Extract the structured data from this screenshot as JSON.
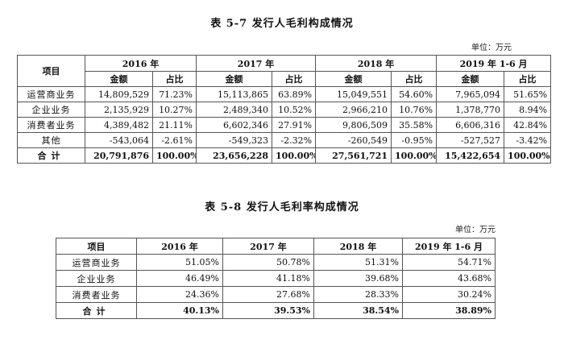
{
  "table1": {
    "title": "表 5-7  发行人毛利构成情况",
    "unit": "单位：万元",
    "item_header": "项目",
    "years": [
      "2016 年",
      "2017 年",
      "2018 年",
      "2019 年 1-6 月"
    ],
    "sub_headers": {
      "amount": "金额",
      "ratio": "占比"
    },
    "rows": [
      {
        "label": "运营商业务",
        "cells": [
          "14,809,529",
          "71.23%",
          "15,113,865",
          "63.89%",
          "15,049,551",
          "54.60%",
          "7,965,094",
          "51.65%"
        ]
      },
      {
        "label": "企业业务",
        "cells": [
          "2,135,929",
          "10.27%",
          "2,489,340",
          "10.52%",
          "2,966,210",
          "10.76%",
          "1,378,770",
          "8.94%"
        ]
      },
      {
        "label": "消费者业务",
        "cells": [
          "4,389,482",
          "21.11%",
          "6,602,346",
          "27.91%",
          "9,806,509",
          "35.58%",
          "6,606,316",
          "42.84%"
        ]
      },
      {
        "label": "其他",
        "cells": [
          "-543,064",
          "-2.61%",
          "-549,323",
          "-2.32%",
          "-260,549",
          "-0.95%",
          "-527,527",
          "-3.42%"
        ]
      }
    ],
    "total": {
      "label": "合计",
      "cells": [
        "20,791,876",
        "100.00%",
        "23,656,228",
        "100.00%",
        "27,561,721",
        "100.00%",
        "15,422,654",
        "100.00%"
      ]
    }
  },
  "table2": {
    "title": "表 5-8  发行人毛利率构成情况",
    "unit": "单位：万元",
    "item_header": "项目",
    "years": [
      "2016 年",
      "2017 年",
      "2018 年",
      "2019 年 1-6 月"
    ],
    "rows": [
      {
        "label": "运营商业务",
        "cells": [
          "51.05%",
          "50.78%",
          "51.31%",
          "54.71%"
        ]
      },
      {
        "label": "企业业务",
        "cells": [
          "46.49%",
          "41.18%",
          "39.68%",
          "43.68%"
        ]
      },
      {
        "label": "消费者业务",
        "cells": [
          "24.36%",
          "27.68%",
          "28.33%",
          "30.24%"
        ]
      }
    ],
    "total": {
      "label": "合计",
      "cells": [
        "40.13%",
        "39.53%",
        "38.54%",
        "38.89%"
      ]
    }
  }
}
